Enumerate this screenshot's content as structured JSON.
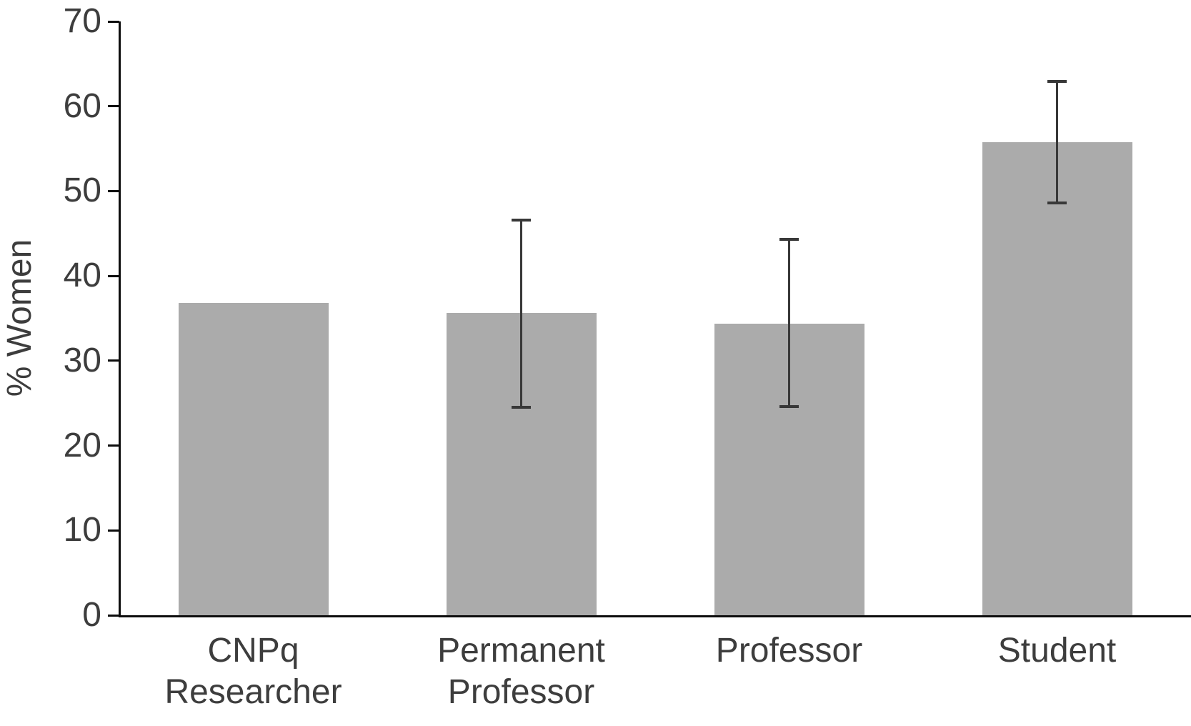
{
  "chart_data": {
    "type": "bar",
    "title": "",
    "xlabel": "",
    "ylabel": "% Women",
    "categories": [
      "CNPq\nResearcher",
      "Permanent\nProfessor",
      "Professor",
      "Student"
    ],
    "values": [
      36.8,
      35.6,
      34.4,
      55.8
    ],
    "error_bars": [
      {
        "low": null,
        "high": null
      },
      {
        "low": 24.5,
        "high": 46.6
      },
      {
        "low": 24.6,
        "high": 44.3
      },
      {
        "low": 48.6,
        "high": 62.9
      }
    ],
    "ylim": [
      0,
      70
    ],
    "yticks": [
      0,
      10,
      20,
      30,
      40,
      50,
      60,
      70
    ],
    "grid": false,
    "legend": false,
    "bar_color": "#ababab",
    "error_bar_color": "#383838",
    "axis_color": "#0d0d0d",
    "text_color": "#3d3d3d"
  }
}
